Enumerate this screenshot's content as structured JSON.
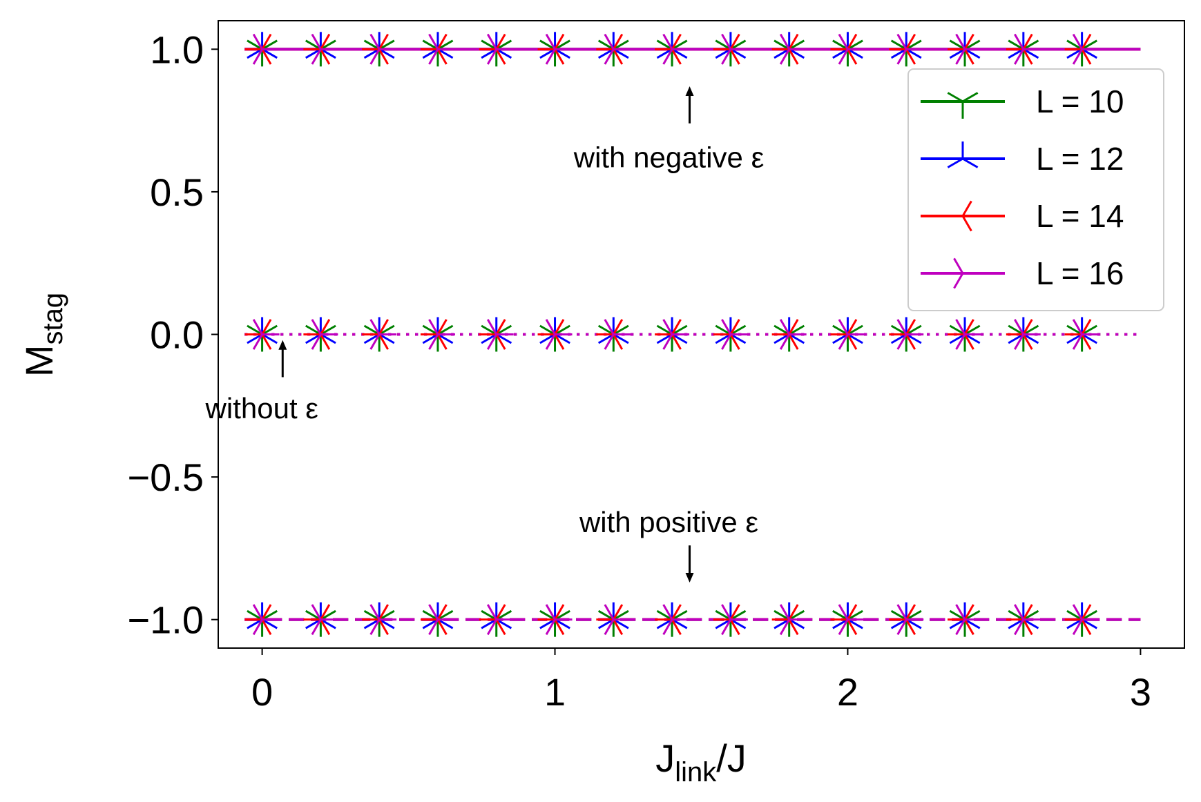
{
  "chart_data": {
    "type": "line",
    "xlabel": {
      "main": "J",
      "sub": "link",
      "rest": "/J"
    },
    "ylabel": {
      "main": "M",
      "sub": "stag"
    },
    "xlim": [
      -0.15,
      3.15
    ],
    "ylim": [
      -1.1,
      1.1
    ],
    "xticks": [
      0,
      1,
      2,
      3
    ],
    "xtick_labels": [
      "0",
      "1",
      "2",
      "3"
    ],
    "yticks": [
      1.0,
      0.5,
      0.0,
      -0.5,
      -1.0
    ],
    "ytick_labels": [
      "1.0",
      "0.5",
      "0.0",
      "−0.5",
      "−1.0"
    ],
    "grid": false,
    "legend_position": "top-right",
    "x_markers": [
      0,
      0.2,
      0.4,
      0.6,
      0.8,
      1.0,
      1.2,
      1.4,
      1.6,
      1.8,
      2.0,
      2.2,
      2.4,
      2.6,
      2.8
    ],
    "line_x_range": [
      -0.06,
      3.0
    ],
    "series": [
      {
        "name": "L = 10",
        "color": "#008000",
        "marker": "tri_down"
      },
      {
        "name": "L = 12",
        "color": "#0000ff",
        "marker": "tri_up"
      },
      {
        "name": "L = 14",
        "color": "#ff0000",
        "marker": "tri_left"
      },
      {
        "name": "L = 16",
        "color": "#bf00bf",
        "marker": "tri_right"
      }
    ],
    "curves": [
      {
        "case": "negative",
        "y": 1.0,
        "linestyle": "solid"
      },
      {
        "case": "none",
        "y": 0.0,
        "linestyle": "dotted"
      },
      {
        "case": "positive",
        "y": -1.0,
        "linestyle": "dashed"
      }
    ],
    "annotations": [
      {
        "text": "with negative ε",
        "x": 1.46,
        "y": 0.62,
        "arrow_from_y": 0.74,
        "arrow_to_y": 0.87
      },
      {
        "text": "without ε",
        "x": 0.07,
        "y": -0.26,
        "arrow_from_y": -0.15,
        "arrow_to_y": -0.02
      },
      {
        "text": "with positive ε",
        "x": 1.46,
        "y": -0.66,
        "arrow_from_y": -0.74,
        "arrow_to_y": -0.87
      }
    ]
  }
}
